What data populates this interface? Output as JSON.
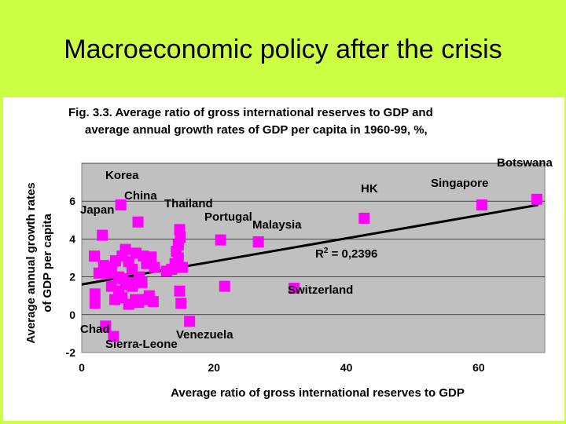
{
  "slide": {
    "title": "Macroeconomic policy after the crisis"
  },
  "colors": {
    "background": "#ccff44",
    "plot_area": "#c0c0c0",
    "marker": "#ff00ff",
    "trendline": "#000000"
  },
  "chart_data": {
    "type": "scatter",
    "title_line1": "Fig. 3.3. Average ratio of gross international reserves to GDP and",
    "title_line2": "average annual growth rates of GDP per capita in 1960-99, %,",
    "xlabel": "Average ratio of gross international reserves to GDP",
    "ylabel_line1": "Average annual growth rates",
    "ylabel_line2": "of GDP per capita",
    "xlim": [
      0,
      70
    ],
    "ylim": [
      -2,
      8
    ],
    "xticks": [
      0,
      20,
      40,
      60
    ],
    "yticks": [
      -2,
      0,
      2,
      4,
      6
    ],
    "grid": true,
    "trendline": {
      "x1": 0,
      "y1": 1.6,
      "x2": 69,
      "y2": 5.8
    },
    "r_squared_label": "R",
    "r_squared_sup": "2",
    "r_squared_value": " = 0,2396",
    "labels": [
      "Botswana",
      "Singapore",
      "HK",
      "Korea",
      "China",
      "Thailand",
      "Japan",
      "Portugal",
      "Malaysia",
      "Switzerland",
      "Chad",
      "Venezuela",
      "Sierra-Leone"
    ],
    "points": [
      {
        "x": 68.8,
        "y": 6.1
      },
      {
        "x": 60.5,
        "y": 5.8
      },
      {
        "x": 42.7,
        "y": 5.1
      },
      {
        "x": 5.9,
        "y": 5.8
      },
      {
        "x": 8.5,
        "y": 4.9
      },
      {
        "x": 14.8,
        "y": 4.5
      },
      {
        "x": 21,
        "y": 3.95
      },
      {
        "x": 26.7,
        "y": 3.85
      },
      {
        "x": 32.1,
        "y": 1.4
      },
      {
        "x": 3.1,
        "y": 4.2
      },
      {
        "x": 3.6,
        "y": -0.6
      },
      {
        "x": 4.8,
        "y": -1.15
      },
      {
        "x": 16.3,
        "y": -0.35
      },
      {
        "x": 21.6,
        "y": 1.5
      },
      {
        "x": 1.9,
        "y": 3.1
      },
      {
        "x": 2.6,
        "y": 2.2
      },
      {
        "x": 3.3,
        "y": 2.6
      },
      {
        "x": 3.9,
        "y": 2.2
      },
      {
        "x": 4.5,
        "y": 2.5
      },
      {
        "x": 5.1,
        "y": 2.85
      },
      {
        "x": 5.6,
        "y": 2.0
      },
      {
        "x": 6.1,
        "y": 3.1
      },
      {
        "x": 6.6,
        "y": 3.45
      },
      {
        "x": 7.1,
        "y": 2.8
      },
      {
        "x": 7.6,
        "y": 2.4
      },
      {
        "x": 8.2,
        "y": 3.25
      },
      {
        "x": 8.7,
        "y": 2.0
      },
      {
        "x": 9.3,
        "y": 3.1
      },
      {
        "x": 9.8,
        "y": 2.7
      },
      {
        "x": 10.5,
        "y": 3.05
      },
      {
        "x": 11.0,
        "y": 2.5
      },
      {
        "x": 12.8,
        "y": 2.3
      },
      {
        "x": 13.6,
        "y": 2.4
      },
      {
        "x": 14.1,
        "y": 2.7
      },
      {
        "x": 14.6,
        "y": 3.0
      },
      {
        "x": 14.3,
        "y": 3.35
      },
      {
        "x": 14.6,
        "y": 3.7
      },
      {
        "x": 14.9,
        "y": 4.1
      },
      {
        "x": 15.2,
        "y": 2.5
      },
      {
        "x": 14.8,
        "y": 1.25
      },
      {
        "x": 15.0,
        "y": 0.6
      },
      {
        "x": 2.0,
        "y": 1.1
      },
      {
        "x": 2.0,
        "y": 0.6
      },
      {
        "x": 4.5,
        "y": 1.5
      },
      {
        "x": 5.0,
        "y": 0.8
      },
      {
        "x": 5.6,
        "y": 1.25
      },
      {
        "x": 6.1,
        "y": 0.9
      },
      {
        "x": 6.6,
        "y": 1.6
      },
      {
        "x": 7.1,
        "y": 0.55
      },
      {
        "x": 7.6,
        "y": 1.5
      },
      {
        "x": 8.1,
        "y": 0.8
      },
      {
        "x": 8.6,
        "y": 0.65
      },
      {
        "x": 9.1,
        "y": 1.7
      },
      {
        "x": 9.7,
        "y": 0.8
      },
      {
        "x": 10.2,
        "y": 1.0
      },
      {
        "x": 10.8,
        "y": 0.7
      },
      {
        "x": 6.2,
        "y": 1.9
      },
      {
        "x": 7.3,
        "y": 1.7
      }
    ]
  }
}
